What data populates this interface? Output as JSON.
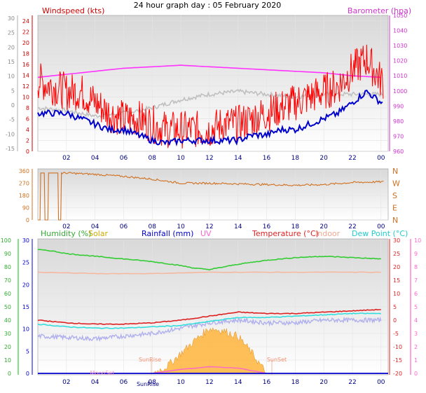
{
  "page_title": "24 hour graph day : 05 February 2020",
  "chart_data": [
    {
      "type": "line",
      "panel": "wind",
      "legend_left": "Windspeed (kts)",
      "legend_right": "Barometer (hpa)",
      "x_ticks": [
        "02",
        "04",
        "06",
        "08",
        "10",
        "12",
        "14",
        "16",
        "18",
        "20",
        "22",
        "00"
      ],
      "outer_left_ticks": [
        "30",
        "25",
        "20",
        "15",
        "10",
        "5",
        "0",
        "-5",
        "-10",
        "-15"
      ],
      "left_ticks": [
        "24",
        "22",
        "20",
        "18",
        "16",
        "14",
        "12",
        "10",
        "8",
        "6",
        "4",
        "2",
        "0"
      ],
      "right_ticks": [
        "1050",
        "1040",
        "1030",
        "1020",
        "1010",
        "1000",
        "990",
        "980",
        "970",
        "960"
      ],
      "ylim_left": [
        0,
        25
      ],
      "ylim_right": [
        960,
        1050
      ],
      "colors": {
        "gust": "#ff0000",
        "avg": "#0000cc",
        "temp_bg": "#c0c0c0",
        "baro": "#ff33ff"
      },
      "series": [
        {
          "name_ref": "wind_gust",
          "hour": [
            0,
            1,
            2,
            3,
            4,
            5,
            6,
            7,
            8,
            9,
            10,
            11,
            12,
            13,
            14,
            15,
            16,
            17,
            18,
            19,
            20,
            21,
            22,
            23,
            24
          ],
          "values": [
            13,
            12,
            11,
            11,
            9,
            7,
            6,
            6,
            5,
            4,
            4,
            4,
            4,
            5,
            5,
            6,
            7,
            8,
            9,
            10,
            11,
            12,
            15,
            17,
            13
          ]
        },
        {
          "name_ref": "wind_avg",
          "hour": [
            0,
            1,
            2,
            3,
            4,
            5,
            6,
            7,
            8,
            9,
            10,
            11,
            12,
            13,
            14,
            15,
            16,
            17,
            18,
            19,
            20,
            21,
            22,
            23,
            24
          ],
          "values": [
            7,
            7,
            7,
            6,
            5,
            4,
            4,
            3,
            2,
            1.5,
            2,
            2,
            2,
            2,
            2,
            3,
            3,
            4,
            4,
            5,
            6,
            7,
            9,
            11,
            9
          ]
        },
        {
          "name_ref": "baro",
          "hour": [
            0,
            2,
            4,
            6,
            8,
            10,
            12,
            14,
            16,
            18,
            20,
            22,
            24
          ],
          "values": [
            1009,
            1011,
            1013,
            1015,
            1016,
            1017,
            1016,
            1015,
            1014,
            1013,
            1012,
            1010,
            1009
          ]
        },
        {
          "name_ref": "temp_bg",
          "hour": [
            0,
            2,
            4,
            6,
            8,
            10,
            12,
            14,
            16,
            18,
            20,
            22,
            24
          ],
          "values": [
            8,
            7.5,
            6.5,
            7,
            8,
            9.5,
            10.5,
            11,
            10.5,
            10,
            10.5,
            10.5,
            10.5
          ]
        }
      ]
    },
    {
      "type": "line",
      "panel": "direction",
      "x_ticks": [
        "02",
        "04",
        "06",
        "08",
        "10",
        "12",
        "14",
        "16",
        "18",
        "20",
        "22",
        "00"
      ],
      "left_ticks": [
        "360",
        "270",
        "180",
        "90",
        "0"
      ],
      "right_ticks": [
        "N",
        "W",
        "S",
        "E",
        "N"
      ],
      "ylim": [
        0,
        360
      ],
      "color": "#d07020",
      "series": [
        {
          "name_ref": "direction",
          "hour": [
            0,
            1,
            2,
            4,
            6,
            8,
            10,
            12,
            14,
            16,
            18,
            20,
            22,
            24
          ],
          "values": [
            330,
            340,
            345,
            335,
            320,
            300,
            270,
            270,
            265,
            260,
            255,
            260,
            275,
            280
          ]
        }
      ]
    },
    {
      "type": "line",
      "panel": "thermo",
      "legend": {
        "humidity": "Humidity (%)",
        "solar": "Solar",
        "rain": "Rainfall (mm)",
        "uv": "UV",
        "temp": "Temperature (°C)",
        "indoor": "Indoor",
        "dew": "Dew Point (°C)"
      },
      "x_ticks": [
        "02",
        "04",
        "06",
        "08",
        "10",
        "12",
        "14",
        "16",
        "18",
        "20",
        "22",
        "00"
      ],
      "hum_ticks": [
        "100",
        "90",
        "80",
        "70",
        "60",
        "50",
        "40",
        "30",
        "20",
        "10",
        "0"
      ],
      "rain_ticks": [
        "30",
        "25",
        "20",
        "15",
        "10",
        "5",
        "0"
      ],
      "temp_ticks": [
        "30",
        "25",
        "20",
        "15",
        "10",
        "5",
        "0",
        "-5",
        "-10",
        "-15",
        "-20"
      ],
      "uv_ticks": [
        "10",
        "9",
        "8",
        "7",
        "6",
        "5",
        "4",
        "3",
        "2",
        "1",
        "0"
      ],
      "annotations": [
        "SunRise",
        "SunSet",
        "MoonSet",
        "SunRise"
      ],
      "colors": {
        "humidity": "#33cc33",
        "solar": "#ffb030",
        "rain": "#0000cc",
        "uv": "#ff66cc",
        "temp": "#dd2222",
        "indoor": "#f5b8a0",
        "dew": "#33dddd",
        "feels": "#b0b0ee"
      },
      "series": [
        {
          "name_ref": "humidity",
          "hour": [
            0,
            1,
            2,
            4,
            6,
            8,
            10,
            11,
            12,
            13,
            14,
            16,
            18,
            20,
            22,
            24
          ],
          "values": [
            93,
            92,
            90,
            88,
            86,
            84,
            81,
            79,
            78,
            80,
            82,
            85,
            87,
            88,
            87,
            86
          ]
        },
        {
          "name_ref": "temp",
          "hour": [
            0,
            2,
            4,
            6,
            8,
            10,
            12,
            14,
            16,
            18,
            20,
            22,
            24
          ],
          "values": [
            0,
            -1,
            -1.5,
            -1.5,
            -1,
            0,
            1.5,
            3,
            2.5,
            2.5,
            3,
            3.5,
            4
          ]
        },
        {
          "name_ref": "dew",
          "hour": [
            0,
            2,
            4,
            6,
            8,
            10,
            12,
            14,
            16,
            18,
            20,
            22,
            24
          ],
          "values": [
            -1.5,
            -2.5,
            -3,
            -3,
            -2.5,
            -2,
            -0.5,
            1,
            1,
            1.5,
            2,
            2.5,
            2.5
          ]
        },
        {
          "name_ref": "indoor",
          "hour": [
            0,
            4,
            8,
            12,
            16,
            20,
            24
          ],
          "values": [
            18,
            17.5,
            17.5,
            18,
            18,
            18,
            18
          ]
        },
        {
          "name_ref": "feels",
          "hour": [
            0,
            2,
            4,
            6,
            8,
            10,
            12,
            14,
            16,
            18,
            20,
            22,
            24
          ],
          "values": [
            -6,
            -6.5,
            -7,
            -6,
            -5,
            -3,
            -1,
            0,
            -1,
            -1,
            0,
            0,
            0
          ]
        },
        {
          "name_ref": "solar",
          "hour": [
            8,
            9,
            10,
            11,
            12,
            13,
            14,
            15,
            16
          ],
          "values": [
            0,
            0.5,
            1.5,
            2.5,
            3.4,
            3.2,
            2.8,
            1.5,
            0
          ]
        },
        {
          "name_ref": "uv",
          "hour": [
            8,
            10,
            12,
            14,
            16
          ],
          "values": [
            0,
            0.3,
            0.5,
            0.4,
            0
          ]
        }
      ]
    }
  ]
}
